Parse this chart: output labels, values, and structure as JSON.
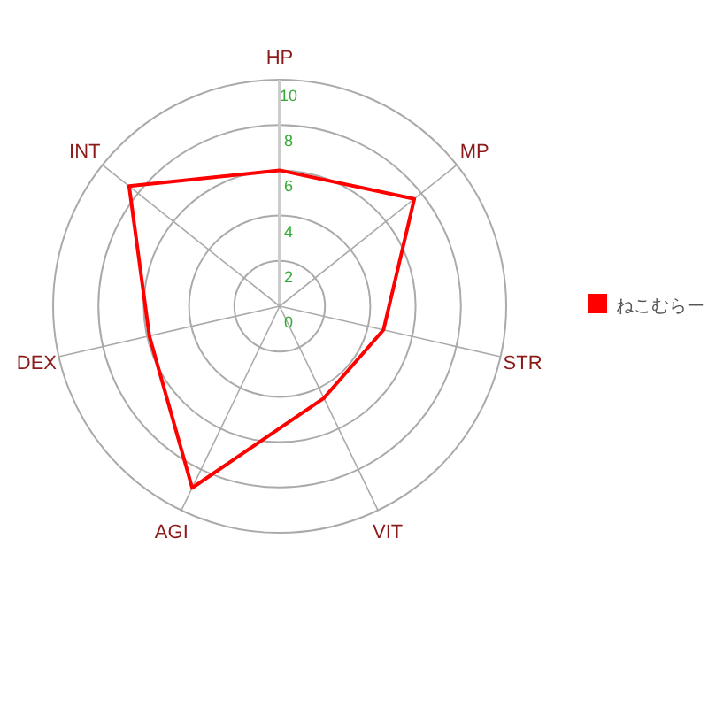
{
  "chart_data": {
    "type": "radar",
    "categories": [
      "HP",
      "MP",
      "STR",
      "VIT",
      "AGI",
      "DEX",
      "INT"
    ],
    "series": [
      {
        "name": "ねこむらー",
        "color": "#ff0000",
        "values": [
          6,
          7.6,
          4.7,
          4.5,
          8.9,
          5.9,
          8.5
        ]
      }
    ],
    "ylim": [
      0,
      10
    ],
    "yticks": [
      0,
      2,
      4,
      6,
      8,
      10
    ],
    "grid": true,
    "legend": "right",
    "marker": "none",
    "line_style": "solid"
  }
}
